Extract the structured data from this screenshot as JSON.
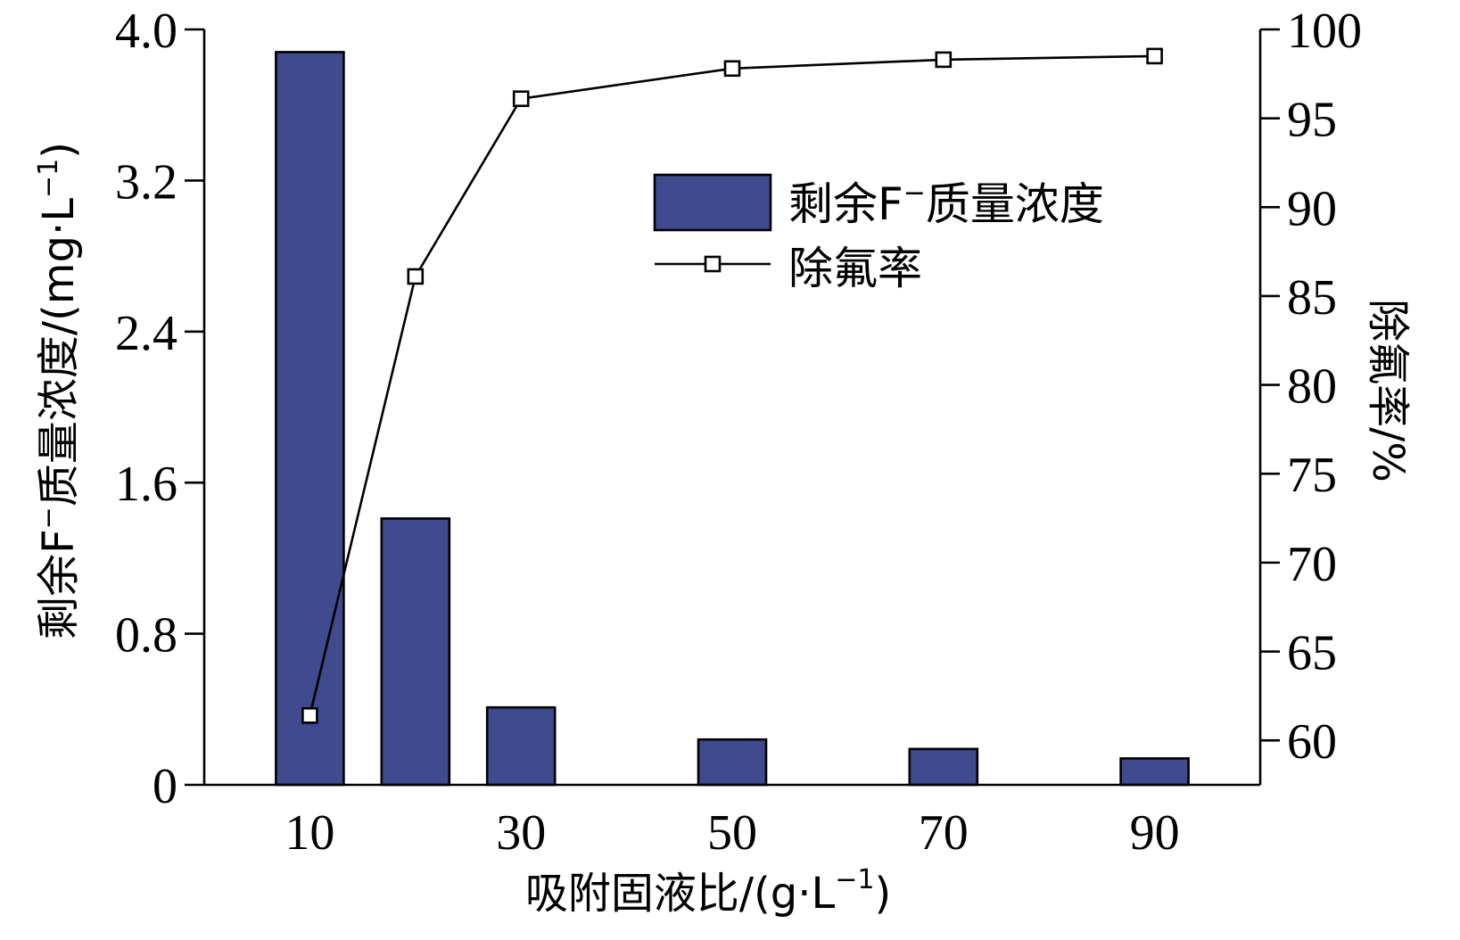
{
  "chart_data": {
    "type": "bar",
    "categories": [
      "10",
      "20",
      "30",
      "50",
      "70",
      "90"
    ],
    "x": [
      10,
      20,
      30,
      50,
      70,
      90
    ],
    "x_tick_labels": [
      "10",
      "30",
      "50",
      "70",
      "90"
    ],
    "x_tick_values": [
      10,
      30,
      50,
      70,
      90
    ],
    "xlabel": "吸附固液比/(g·L",
    "xlabel_sup": "−1",
    "xlabel_end": ")",
    "xlim": [
      0,
      100
    ],
    "ylabel": "剩余F",
    "ylabel_sup": "−",
    "ylabel_mid": "质量浓度/(mg·L",
    "ylabel_sup2": "−1",
    "ylabel_end": ")",
    "ylim": [
      0,
      4.0
    ],
    "yticks": [
      "0",
      "0.8",
      "1.6",
      "2.4",
      "3.2",
      "4.0"
    ],
    "ytick_values": [
      0,
      0.8,
      1.6,
      2.4,
      3.2,
      4.0
    ],
    "y2label": "除氟率/%",
    "y2lim": [
      57.5,
      100
    ],
    "y2ticks": [
      "60",
      "65",
      "70",
      "75",
      "80",
      "85",
      "90",
      "95",
      "100"
    ],
    "y2tick_values": [
      60,
      65,
      70,
      75,
      80,
      85,
      90,
      95,
      100
    ],
    "series": [
      {
        "name": "剩余F",
        "name_sup": "−",
        "name_end": "质量浓度",
        "type": "bar",
        "axis": "left",
        "color": "#3f4a8f",
        "values": [
          3.88,
          1.41,
          0.41,
          0.24,
          0.19,
          0.14
        ]
      },
      {
        "name": "除氟率",
        "type": "line",
        "axis": "right",
        "marker": "open-square",
        "color": "#000000",
        "values": [
          61.4,
          86.1,
          96.1,
          97.8,
          98.3,
          98.5
        ]
      }
    ],
    "legend_position": "top-right",
    "grid": false
  }
}
